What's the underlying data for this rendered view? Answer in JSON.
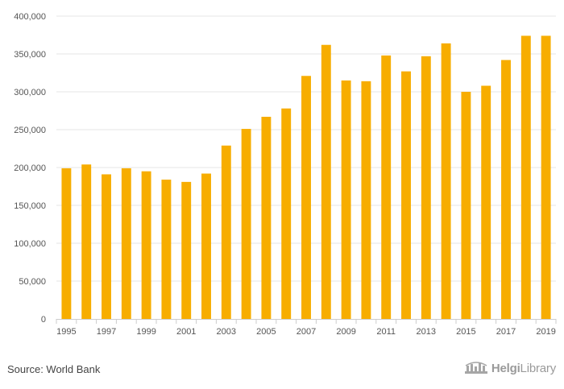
{
  "chart_data": {
    "type": "bar",
    "categories": [
      "1995",
      "1996",
      "1997",
      "1998",
      "1999",
      "2000",
      "2001",
      "2002",
      "2003",
      "2004",
      "2005",
      "2006",
      "2007",
      "2008",
      "2009",
      "2010",
      "2011",
      "2012",
      "2013",
      "2014",
      "2015",
      "2016",
      "2017",
      "2018",
      "2019"
    ],
    "values": [
      199000,
      204000,
      191000,
      199000,
      195000,
      184000,
      181000,
      192000,
      229000,
      251000,
      267000,
      278000,
      321000,
      362000,
      315000,
      314000,
      348000,
      327000,
      347000,
      364000,
      300000,
      308000,
      342000,
      374000,
      374000
    ],
    "x_tick_labels": [
      "1995",
      "1997",
      "1999",
      "2001",
      "2003",
      "2005",
      "2007",
      "2009",
      "2011",
      "2013",
      "2015",
      "2017",
      "2019"
    ],
    "y_ticks": [
      0,
      50000,
      100000,
      150000,
      200000,
      250000,
      300000,
      350000,
      400000
    ],
    "y_tick_labels": [
      "0",
      "50,000",
      "100,000",
      "150,000",
      "200,000",
      "250,000",
      "300,000",
      "350,000",
      "400,000"
    ],
    "ylim": [
      0,
      400000
    ],
    "title": "",
    "xlabel": "",
    "ylabel": "",
    "grid": true,
    "bar_color": "#f7ad00",
    "grid_color": "#e6e6e6",
    "axis_color": "#cccccc"
  },
  "footer": {
    "source": "Source: World Bank",
    "logo_bold": "Helgi",
    "logo_regular": "Library"
  }
}
